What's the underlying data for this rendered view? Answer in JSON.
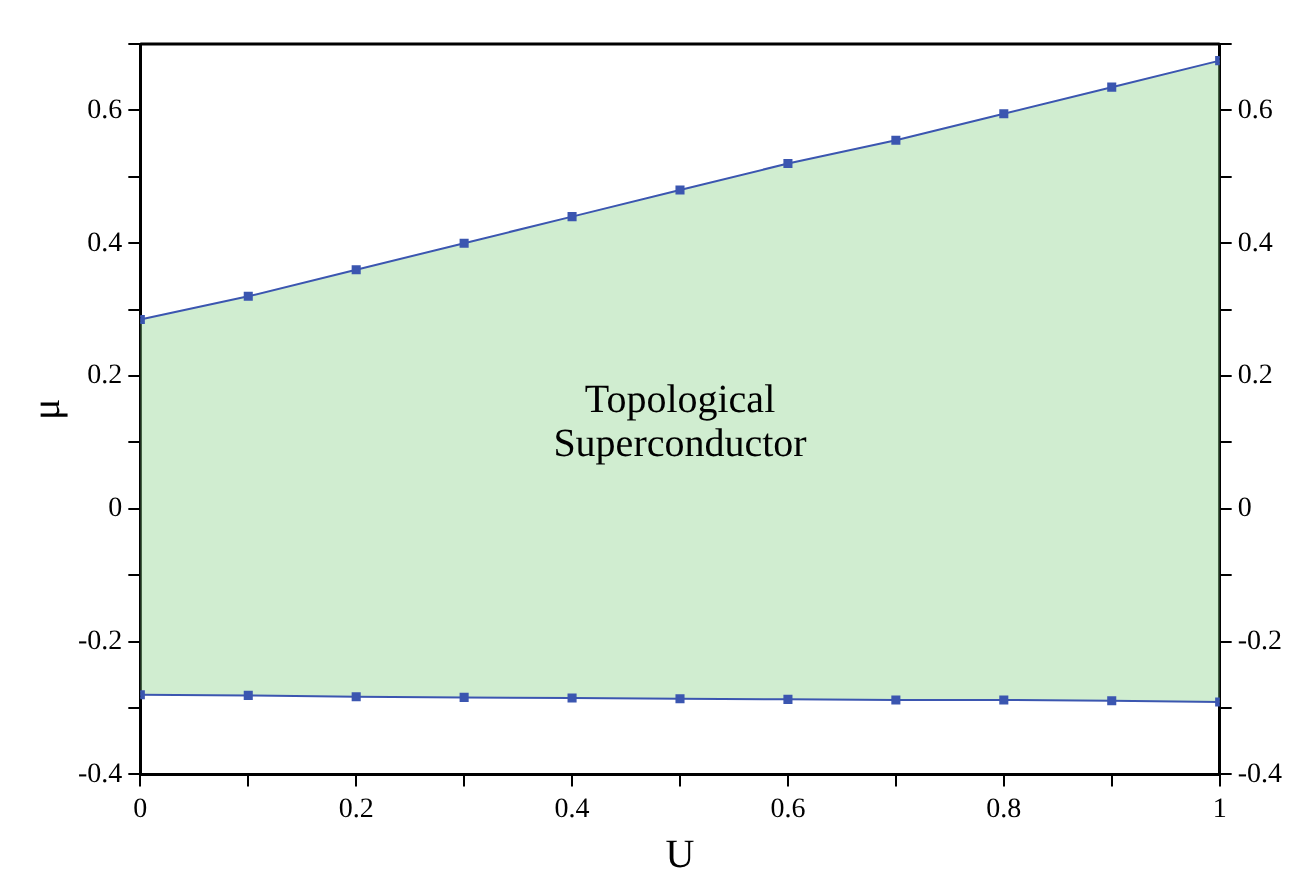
{
  "chart_data": {
    "type": "line",
    "xlabel": "U",
    "ylabel": "μ",
    "x": [
      0,
      0.1,
      0.2,
      0.3,
      0.4,
      0.5,
      0.6,
      0.7,
      0.8,
      0.9,
      1
    ],
    "series": [
      {
        "color": "#3b56b0",
        "values": [
          -0.28,
          -0.281,
          -0.283,
          -0.284,
          -0.285,
          -0.286,
          -0.287,
          -0.288,
          -0.288,
          -0.289,
          -0.291
        ]
      },
      {
        "color": "#3b56b0",
        "values": [
          0.285,
          0.32,
          0.36,
          0.4,
          0.44,
          0.48,
          0.52,
          0.555,
          0.595,
          0.635,
          0.675
        ],
        "lower": [
          -0.28,
          -0.281,
          -0.283,
          -0.284,
          -0.285,
          -0.286,
          -0.287,
          -0.288,
          -0.288,
          -0.289,
          -0.291
        ],
        "upper": [
          0.285,
          0.32,
          0.36,
          0.4,
          0.44,
          0.48,
          0.52,
          0.555,
          0.595,
          0.635,
          0.675
        ]
      }
    ],
    "xlim": [
      0,
      1
    ],
    "xticks": [
      0,
      {
        "value": 0.1,
        "label": null
      },
      0.2,
      {
        "value": 0.3,
        "label": null
      },
      0.4,
      {
        "value": 0.5,
        "label": null
      },
      0.6,
      {
        "value": 0.7,
        "label": null
      },
      0.8,
      {
        "value": 0.9,
        "label": null
      },
      1
    ],
    "ylim": [
      -0.4,
      0.7
    ],
    "yticks": [
      -0.4,
      {
        "value": -0.3,
        "label": null
      },
      -0.2,
      {
        "value": -0.1,
        "label": null
      },
      0,
      {
        "value": 0.1,
        "label": null
      },
      0.2,
      {
        "value": 0.3,
        "label": null
      },
      0.4,
      {
        "value": 0.5,
        "label": null
      },
      0.6,
      {
        "value": 0.7,
        "label": null
      }
    ],
    "y2lim": [
      -0.4,
      0.7
    ],
    "y2ticks": [
      -0.4,
      {
        "value": -0.3,
        "label": null
      },
      -0.2,
      {
        "value": -0.1,
        "label": null
      },
      0,
      {
        "value": 0.1,
        "label": null
      },
      0.2,
      {
        "value": 0.3,
        "label": null
      },
      0.4,
      {
        "value": 0.5,
        "label": null
      },
      0.6,
      {
        "value": 0.7,
        "label": null
      }
    ],
    "annotations": [
      "Topological\nSuperconductor"
    ],
    "marker": "square",
    "grid": false,
    "legend": false
  }
}
